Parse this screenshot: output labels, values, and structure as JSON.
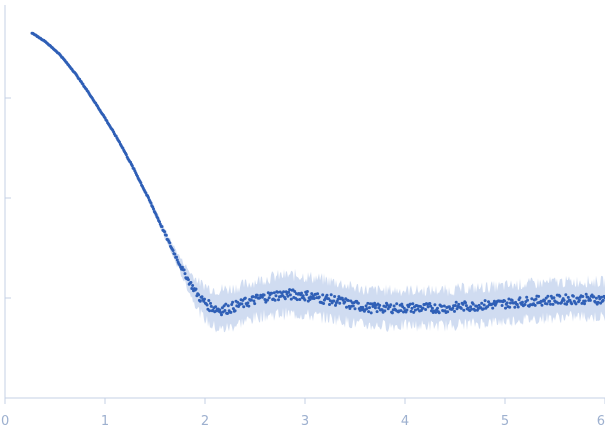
{
  "chart_data": {
    "type": "scatter",
    "title": "",
    "xlabel": "",
    "ylabel": "",
    "xlim": [
      0,
      6
    ],
    "ylim": [
      0,
      1.2
    ],
    "x_ticks": [
      "0",
      "1",
      "2",
      "3",
      "4",
      "5",
      "6"
    ],
    "y_ticks": [
      0.3,
      0.6,
      0.9,
      1.2
    ],
    "y_tick_labels_shown": false,
    "grid": false,
    "legend": "none",
    "colors": {
      "points": "#2f5fb6",
      "error_band": "#c8d6ee",
      "axis": "#c4d0e6",
      "tick_text": "#9db0cf"
    },
    "series": [
      {
        "x": [
          0.27,
          0.4,
          0.55,
          0.7,
          0.85,
          1.0,
          1.15,
          1.3,
          1.45,
          1.55,
          1.65,
          1.75,
          1.85,
          1.95,
          2.05,
          2.15,
          2.25,
          2.35,
          2.45,
          2.55,
          2.65,
          2.75,
          2.85,
          2.95,
          3.05,
          3.15,
          3.25,
          3.35,
          3.45,
          3.55,
          3.65,
          3.75,
          3.85,
          3.95,
          4.05,
          4.15,
          4.25,
          4.35,
          4.45,
          4.55,
          4.65,
          4.75,
          4.85,
          4.95,
          5.05,
          5.15,
          5.25,
          5.35,
          5.45,
          5.55,
          5.65,
          5.75,
          5.85,
          5.95,
          6.0
        ],
        "y": [
          1.095,
          1.07,
          1.03,
          0.975,
          0.91,
          0.84,
          0.765,
          0.68,
          0.59,
          0.525,
          0.46,
          0.4,
          0.345,
          0.3,
          0.275,
          0.265,
          0.27,
          0.28,
          0.29,
          0.3,
          0.305,
          0.31,
          0.31,
          0.31,
          0.305,
          0.3,
          0.295,
          0.29,
          0.28,
          0.275,
          0.27,
          0.27,
          0.27,
          0.27,
          0.27,
          0.27,
          0.27,
          0.27,
          0.27,
          0.275,
          0.275,
          0.278,
          0.28,
          0.282,
          0.285,
          0.288,
          0.29,
          0.292,
          0.294,
          0.295,
          0.296,
          0.297,
          0.297,
          0.296,
          0.295
        ],
        "err": [
          0.003,
          0.003,
          0.004,
          0.004,
          0.005,
          0.006,
          0.007,
          0.008,
          0.01,
          0.012,
          0.016,
          0.022,
          0.032,
          0.045,
          0.055,
          0.06,
          0.058,
          0.055,
          0.055,
          0.055,
          0.056,
          0.057,
          0.058,
          0.058,
          0.058,
          0.057,
          0.056,
          0.055,
          0.054,
          0.054,
          0.053,
          0.053,
          0.053,
          0.053,
          0.053,
          0.053,
          0.053,
          0.053,
          0.053,
          0.053,
          0.053,
          0.053,
          0.053,
          0.053,
          0.053,
          0.053,
          0.053,
          0.053,
          0.053,
          0.053,
          0.053,
          0.053,
          0.053,
          0.053,
          0.053
        ]
      }
    ]
  }
}
